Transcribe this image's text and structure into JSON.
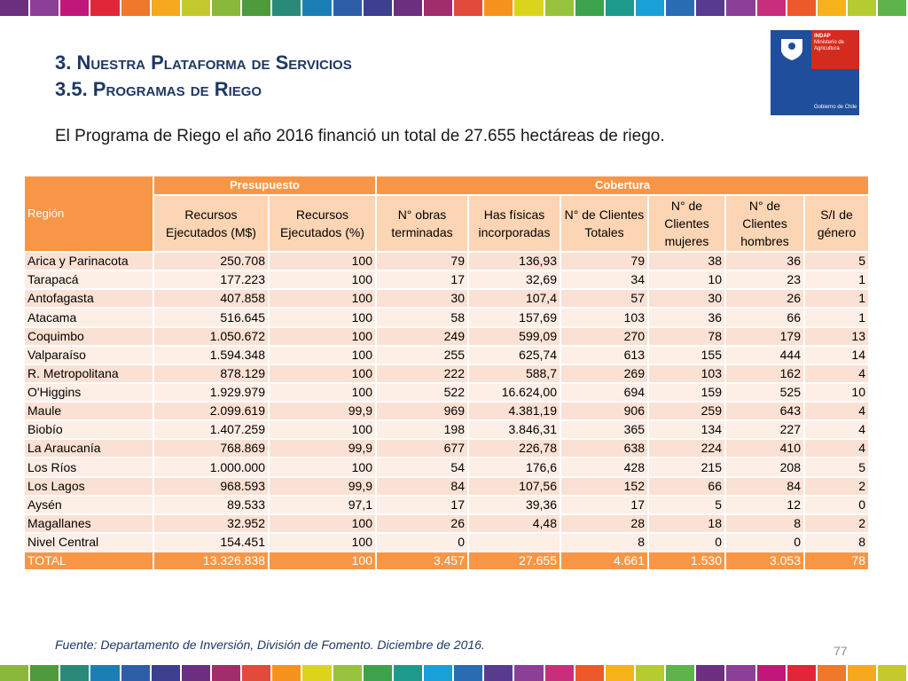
{
  "header": {
    "title": [
      "3. Nuestra Plataforma de Servicios",
      "3.5. Programas de Riego"
    ],
    "subtitle": "El Programa de Riego el año 2016 financió un total de 27.655 hectáreas de riego."
  },
  "logo": {
    "name": "INDAP",
    "ministry": [
      "Ministerio de",
      "Agricultura"
    ],
    "government": "Gobierno de Chile"
  },
  "table": {
    "region_header": "Región",
    "groups": [
      "Presupuesto",
      "Cobertura"
    ],
    "columns": [
      "Recursos Ejecutados (M$)",
      "Recursos Ejecutados (%)",
      "N° obras terminadas",
      "Has físicas incorporadas",
      "N° de Clientes Totales",
      "N° de Clientes mujeres",
      "N° de Clientes hombres",
      "S/I de género"
    ],
    "rows": [
      [
        "Arica y Parinacota",
        "250.708",
        "100",
        "79",
        "136,93",
        "79",
        "38",
        "36",
        "5"
      ],
      [
        "Tarapacá",
        "177.223",
        "100",
        "17",
        "32,69",
        "34",
        "10",
        "23",
        "1"
      ],
      [
        "Antofagasta",
        "407.858",
        "100",
        "30",
        "107,4",
        "57",
        "30",
        "26",
        "1"
      ],
      [
        "Atacama",
        "516.645",
        "100",
        "58",
        "157,69",
        "103",
        "36",
        "66",
        "1"
      ],
      [
        "Coquimbo",
        "1.050.672",
        "100",
        "249",
        "599,09",
        "270",
        "78",
        "179",
        "13"
      ],
      [
        "Valparaíso",
        "1.594.348",
        "100",
        "255",
        "625,74",
        "613",
        "155",
        "444",
        "14"
      ],
      [
        "R. Metropolitana",
        "878.129",
        "100",
        "222",
        "588,7",
        "269",
        "103",
        "162",
        "4"
      ],
      [
        "O'Higgins",
        "1.929.979",
        "100",
        "522",
        "16.624,00",
        "694",
        "159",
        "525",
        "10"
      ],
      [
        "Maule",
        "2.099.619",
        "99,9",
        "969",
        "4.381,19",
        "906",
        "259",
        "643",
        "4"
      ],
      [
        "Biobío",
        "1.407.259",
        "100",
        "198",
        "3.846,31",
        "365",
        "134",
        "227",
        "4"
      ],
      [
        "La Araucanía",
        "768.869",
        "99,9",
        "677",
        "226,78",
        "638",
        "224",
        "410",
        "4"
      ],
      [
        "Los Ríos",
        "1.000.000",
        "100",
        "54",
        "176,6",
        "428",
        "215",
        "208",
        "5"
      ],
      [
        "Los Lagos",
        "968.593",
        "99,9",
        "84",
        "107,56",
        "152",
        "66",
        "84",
        "2"
      ],
      [
        "Aysén",
        "89.533",
        "97,1",
        "17",
        "39,36",
        "17",
        "5",
        "12",
        "0"
      ],
      [
        "Magallanes",
        "32.952",
        "100",
        "26",
        "4,48",
        "28",
        "18",
        "8",
        "2"
      ],
      [
        "Nivel Central",
        "154.451",
        "100",
        "0",
        null,
        "8",
        "0",
        "0",
        "8"
      ]
    ],
    "total": [
      "TOTAL",
      "13.326.838",
      "100",
      "3.457",
      "27.655",
      "4.661",
      "1.530",
      "3.053",
      "78"
    ]
  },
  "footer": {
    "source": "Fuente: Departamento de Inversión, División de Fomento. Diciembre de 2016.",
    "page": "77"
  }
}
